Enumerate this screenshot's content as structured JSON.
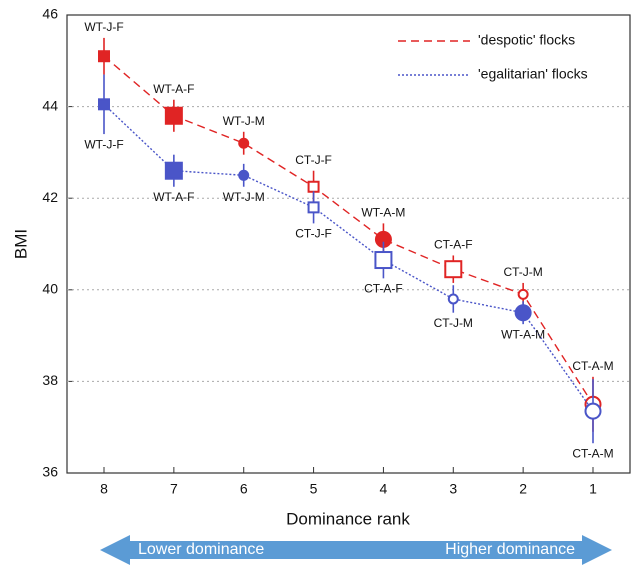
{
  "chart_data": {
    "type": "line",
    "x_label": "Dominance rank",
    "y_label": "BMI",
    "categories": [
      "8",
      "7",
      "6",
      "5",
      "4",
      "3",
      "2",
      "1"
    ],
    "ylim": [
      36,
      46
    ],
    "yticks": [
      36,
      38,
      40,
      42,
      44,
      46
    ],
    "grid": true,
    "legend": "upper right",
    "series": [
      {
        "name": "'despotic' flocks",
        "color": "#e02424",
        "dash": "dashed",
        "values": [
          45.1,
          43.8,
          43.2,
          42.25,
          41.1,
          40.45,
          39.9,
          37.5
        ],
        "errors": [
          0.4,
          0.35,
          0.25,
          0.35,
          0.35,
          0.3,
          0.25,
          0.6
        ],
        "point_labels": [
          "WT-J-F",
          "WT-A-F",
          "WT-J-M",
          "CT-J-F",
          "WT-A-M",
          "CT-A-F",
          "CT-J-M",
          "CT-A-M"
        ]
      },
      {
        "name": "'egalitarian' flocks",
        "color": "#4a55c8",
        "dash": "dotted",
        "values": [
          44.05,
          42.6,
          42.5,
          41.8,
          40.65,
          39.8,
          39.5,
          37.35
        ],
        "errors": [
          0.65,
          0.35,
          0.25,
          0.35,
          0.4,
          0.3,
          0.25,
          0.7
        ],
        "point_labels": [
          "WT-J-F",
          "WT-A-F",
          "WT-J-M",
          "CT-J-F",
          "CT-A-F",
          "CT-J-M",
          "WT-A-M",
          "CT-A-M"
        ]
      }
    ],
    "annotations": [
      "Lower dominance",
      "Higher dominance"
    ]
  }
}
